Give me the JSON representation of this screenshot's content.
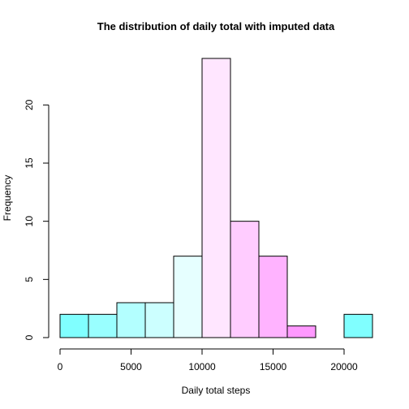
{
  "chart_data": {
    "type": "bar",
    "title": "The distribution of daily total with imputed data",
    "xlabel": "Daily total steps",
    "ylabel": "Frequency",
    "bins": [
      {
        "from": 0,
        "to": 2000,
        "count": 2,
        "color": "#80FFFF"
      },
      {
        "from": 2000,
        "to": 4000,
        "count": 2,
        "color": "#99FFFF"
      },
      {
        "from": 4000,
        "to": 6000,
        "count": 3,
        "color": "#B3FFFF"
      },
      {
        "from": 6000,
        "to": 8000,
        "count": 3,
        "color": "#CCFFFF"
      },
      {
        "from": 8000,
        "to": 10000,
        "count": 7,
        "color": "#E6FFFF"
      },
      {
        "from": 10000,
        "to": 12000,
        "count": 24,
        "color": "#FFE6FF"
      },
      {
        "from": 12000,
        "to": 14000,
        "count": 10,
        "color": "#FFCCFF"
      },
      {
        "from": 14000,
        "to": 16000,
        "count": 7,
        "color": "#FFB3FF"
      },
      {
        "from": 16000,
        "to": 18000,
        "count": 1,
        "color": "#FF99FF"
      },
      {
        "from": 18000,
        "to": 20000,
        "count": 0,
        "color": "#FF80FF"
      },
      {
        "from": 20000,
        "to": 22000,
        "count": 2,
        "color": "#80FFFF"
      }
    ],
    "xlim": [
      0,
      22000
    ],
    "ylim": [
      0,
      24
    ],
    "xticks": [
      0,
      5000,
      10000,
      15000,
      20000
    ],
    "yticks": [
      0,
      5,
      10,
      15,
      20
    ],
    "grid": false
  }
}
